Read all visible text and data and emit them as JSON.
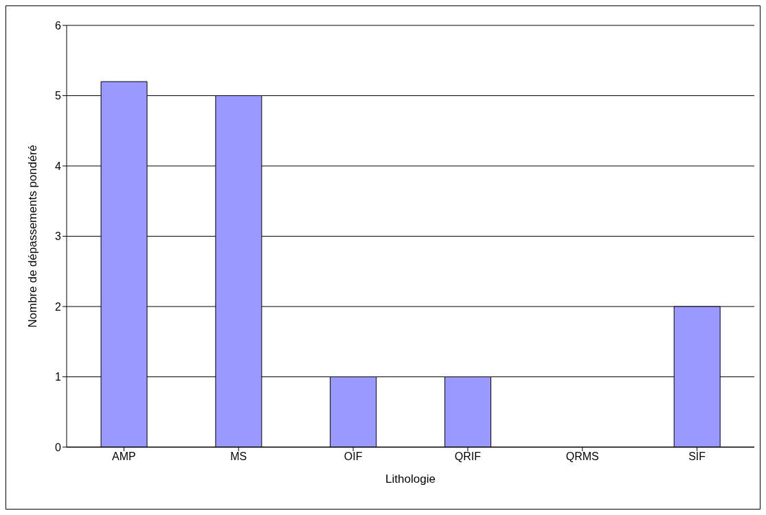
{
  "chart_data": {
    "type": "bar",
    "xlabel": "Lithologie",
    "ylabel": "Nombre de dépassements pondéré",
    "categories": [
      "AMP",
      "MS",
      "OIF",
      "QRIF",
      "QRMS",
      "SIF"
    ],
    "values": [
      5.2,
      5,
      1,
      1,
      0,
      2
    ],
    "color": "#9999ff",
    "ylim": [
      0,
      6
    ],
    "yticks": [
      0,
      1,
      2,
      3,
      4,
      5,
      6
    ],
    "grid": "y"
  }
}
